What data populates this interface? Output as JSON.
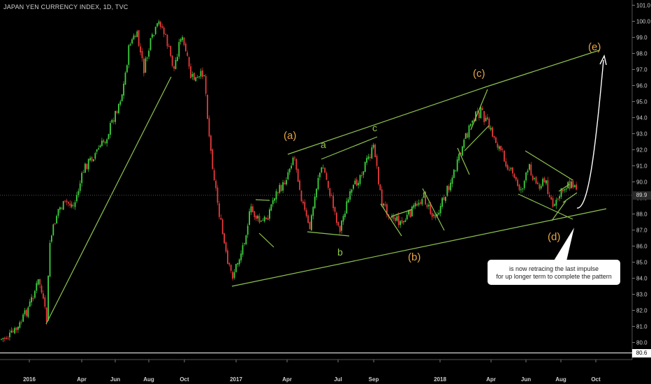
{
  "title": "JAPAN YEN CURRENCY INDEX, 1D, TVC",
  "current_price_label": "89.9",
  "low_price_label": "80.6",
  "annotation": {
    "lines": [
      "is now retracing the last impulse",
      "for up longer term to complete the pattern"
    ]
  },
  "colors": {
    "background": "#000000",
    "up_candle": "#3ed13e",
    "down_candle": "#e83a3a",
    "trendline": "#8fc44f",
    "wave_label": "#e6a545",
    "subwave_label": "#8fc44f",
    "axis_text": "#cfcfcf"
  },
  "chart_data": {
    "type": "candlestick",
    "title": "JAPAN YEN CURRENCY INDEX, 1D, TVC",
    "ylim": [
      80.0,
      101.3
    ],
    "yticks": [
      "101.0",
      "100.0",
      "99.0",
      "98.0",
      "97.0",
      "96.0",
      "95.0",
      "94.0",
      "93.0",
      "92.0",
      "91.0",
      "90.0",
      "89.0",
      "88.0",
      "87.0",
      "86.0",
      "85.0",
      "84.0",
      "83.0",
      "82.0",
      "81.0",
      "80.0"
    ],
    "xticks": [
      "2016",
      "Apr",
      "Jun",
      "Aug",
      "Oct",
      "2017",
      "Apr",
      "Jul",
      "Sep",
      "2018",
      "Apr",
      "Jun",
      "Aug",
      "Oct"
    ],
    "price_series": [
      {
        "x": "2016",
        "y": 81.0
      },
      {
        "x": "2016-01",
        "y": 81.8
      },
      {
        "x": "2016-02",
        "y": 82.5
      },
      {
        "x": "2016-02",
        "y": 84.5
      },
      {
        "x": "2016-03",
        "y": 87.5
      },
      {
        "x": "2016-04",
        "y": 89.5
      },
      {
        "x": "Apr",
        "y": 88.8
      },
      {
        "x": "2016-05",
        "y": 90.5
      },
      {
        "x": "2016-05",
        "y": 93.5
      },
      {
        "x": "2016-06",
        "y": 91.5
      },
      {
        "x": "Jun",
        "y": 95.5
      },
      {
        "x": "2016-06",
        "y": 98.5
      },
      {
        "x": "2016-07",
        "y": 97.0
      },
      {
        "x": "2016-07",
        "y": 99.0
      },
      {
        "x": "Aug",
        "y": 100.3
      },
      {
        "x": "2016-08",
        "y": 97.5
      },
      {
        "x": "2016-09",
        "y": 99.3
      },
      {
        "x": "2016-09",
        "y": 96.5
      },
      {
        "x": "Oct",
        "y": 96.0
      },
      {
        "x": "2016-10",
        "y": 97.5
      },
      {
        "x": "2016-10",
        "y": 94.0
      },
      {
        "x": "2016-11",
        "y": 90.0
      },
      {
        "x": "2016-11",
        "y": 88.0
      },
      {
        "x": "2016-12",
        "y": 86.5
      },
      {
        "x": "2016-12",
        "y": 84.5
      },
      {
        "x": "2017",
        "y": 85.5
      },
      {
        "x": "2017-01",
        "y": 88.5
      },
      {
        "x": "2017-02",
        "y": 86.5
      },
      {
        "x": "2017-02",
        "y": 89.3
      },
      {
        "x": "2017-03",
        "y": 87.3
      },
      {
        "x": "2017-03",
        "y": 90.0
      },
      {
        "x": "Apr",
        "y": 92.3
      },
      {
        "x": "2017-04",
        "y": 89.5
      },
      {
        "x": "2017-05",
        "y": 88.0
      },
      {
        "x": "2017-05",
        "y": 91.5
      },
      {
        "x": "2017-06",
        "y": 89.0
      },
      {
        "x": "Jul",
        "y": 87.7
      },
      {
        "x": "2017-07",
        "y": 90.5
      },
      {
        "x": "2017-08",
        "y": 91.5
      },
      {
        "x": "Sep",
        "y": 93.0
      },
      {
        "x": "2017-09",
        "y": 90.0
      },
      {
        "x": "2017-10",
        "y": 88.3
      },
      {
        "x": "2017-10",
        "y": 89.3
      },
      {
        "x": "2017-11",
        "y": 88.0
      },
      {
        "x": "2017-11",
        "y": 90.3
      },
      {
        "x": "2017-12",
        "y": 88.5
      },
      {
        "x": "2018",
        "y": 89.5
      },
      {
        "x": "2018-01",
        "y": 91.5
      },
      {
        "x": "2018-02",
        "y": 93.5
      },
      {
        "x": "2018-02",
        "y": 94.8
      },
      {
        "x": "2018-03",
        "y": 96.2
      },
      {
        "x": "Apr",
        "y": 94.5
      },
      {
        "x": "2018-04",
        "y": 93.0
      },
      {
        "x": "2018-05",
        "y": 91.0
      },
      {
        "x": "Jun",
        "y": 90.0
      },
      {
        "x": "2018-06",
        "y": 91.5
      },
      {
        "x": "2018-07",
        "y": 88.7
      },
      {
        "x": "Aug",
        "y": 90.0
      },
      {
        "x": "2018-08",
        "y": 90.5
      },
      {
        "x": "2018-08",
        "y": 89.9
      }
    ],
    "wave_labels": [
      {
        "label": "(a)",
        "kind": "primary"
      },
      {
        "label": "a",
        "kind": "sub"
      },
      {
        "label": "c",
        "kind": "sub"
      },
      {
        "label": "b",
        "kind": "sub"
      },
      {
        "label": "(b)",
        "kind": "primary"
      },
      {
        "label": "(c)",
        "kind": "primary"
      },
      {
        "label": "(d)",
        "kind": "primary"
      },
      {
        "label": "(e)",
        "kind": "primary"
      }
    ],
    "grid": false
  }
}
